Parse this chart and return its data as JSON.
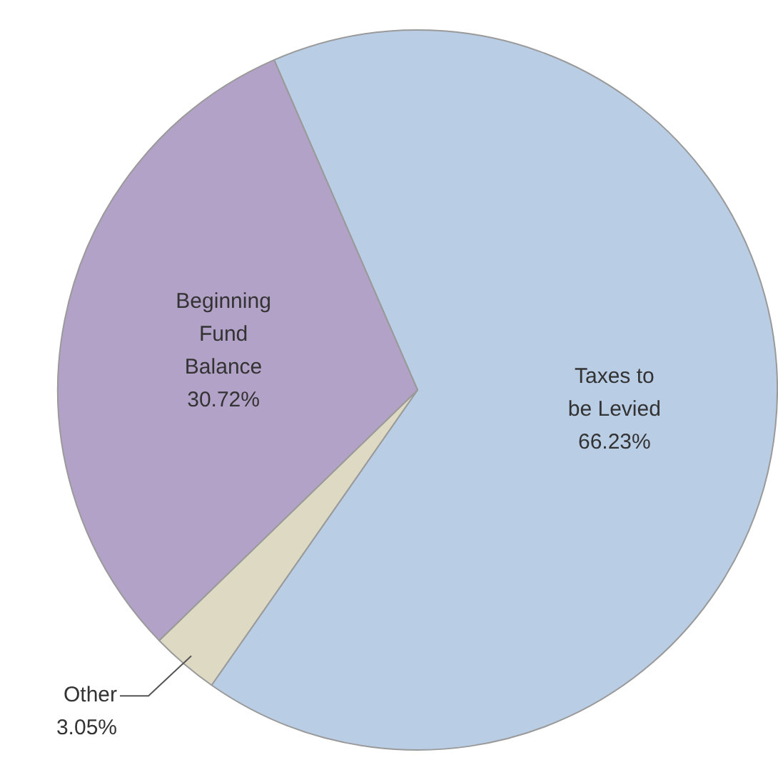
{
  "chart_data": {
    "type": "pie",
    "categories": [
      "Taxes to be Levied",
      "Other",
      "Beginning Fund Balance"
    ],
    "values": [
      66.23,
      3.05,
      30.72
    ],
    "colors": [
      "#b9cde5",
      "#ddd9c3",
      "#b3a2c7"
    ],
    "value_labels": [
      "66.23%",
      "3.05%",
      "30.72%"
    ],
    "legend": false
  }
}
